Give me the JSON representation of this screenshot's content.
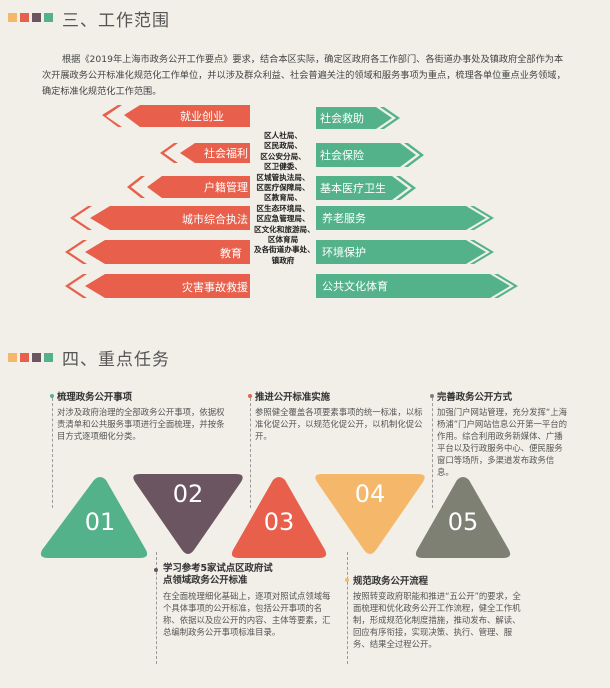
{
  "colors": {
    "red": "#e8604c",
    "green": "#54b28b",
    "orange": "#f5b86a",
    "purple": "#6a5560",
    "gray": "#7d8073",
    "background": "#f1efe8"
  },
  "section3": {
    "title": "三、工作范围",
    "intro": "根据《2019年上海市政务公开工作要点》要求，结合本区实际，确定区政府各工作部门、各街道办事处及镇政府全部作为本次开展政务公开标准化规范化工作单位，并以涉及群众利益、社会普遍关注的领域和服务事项为重点，梳理各单位重点业务领域，确定标准化规范化工作范围。",
    "left_items": [
      "就业创业",
      "社会福利",
      "户籍管理",
      "城市综合执法",
      "教育",
      "灾害事故救援"
    ],
    "right_items": [
      "社会救助",
      "社会保险",
      "基本医疗卫生",
      "养老服务",
      "环境保护",
      "公共文化体育"
    ],
    "departments": [
      "区人社局、",
      "区民政局、",
      "区公安分局、",
      "区卫健委、",
      "区城管执法局、",
      "区医疗保障局、",
      "区教育局、",
      "区生态环境局、",
      "区应急管理局、",
      "区文化和旅游局、",
      "区体育局",
      "及各街道办事处、",
      "镇政府"
    ]
  },
  "section4": {
    "title": "四、重点任务",
    "tasks": [
      {
        "number": "01",
        "title": "梳理政务公开事项",
        "desc": "对涉及政府治理的全部政务公开事项，依据权责清单和公共服务事项进行全面梳理，并按条目方式逐项细化分类。"
      },
      {
        "number": "02",
        "title": "学习参考5家试点区政府试点领域政务公开标准",
        "desc": "在全面梳理细化基础上，逐项对照试点领域每个具体事项的公开标准，包括公开事项的名称、依据以及应公开的内容、主体等要素，汇总编制政务公开事项标准目录。"
      },
      {
        "number": "03",
        "title": "推进公开标准实施",
        "desc": "参照健全覆盖各项要素事项的统一标准，以标准化促公开，以规范化促公开，以机制化促公开。"
      },
      {
        "number": "04",
        "title": "规范政务公开流程",
        "desc": "按照转变政府职能和推进“五公开”的要求，全面梳理和优化政务公开工作流程，健全工作机制，形成规范化制度措施，推动发布、解读、回应有序衔接，实现决策、执行、管理、服务、结果全过程公开。"
      },
      {
        "number": "05",
        "title": "完善政务公开方式",
        "desc": "加强门户网站管理，充分发挥“上海杨浦”门户网站信息公开第一平台的作用。综合利用政务新媒体、广播平台以及行政服务中心、便民服务窗口等场所，多渠道发布政务信息。"
      }
    ]
  }
}
